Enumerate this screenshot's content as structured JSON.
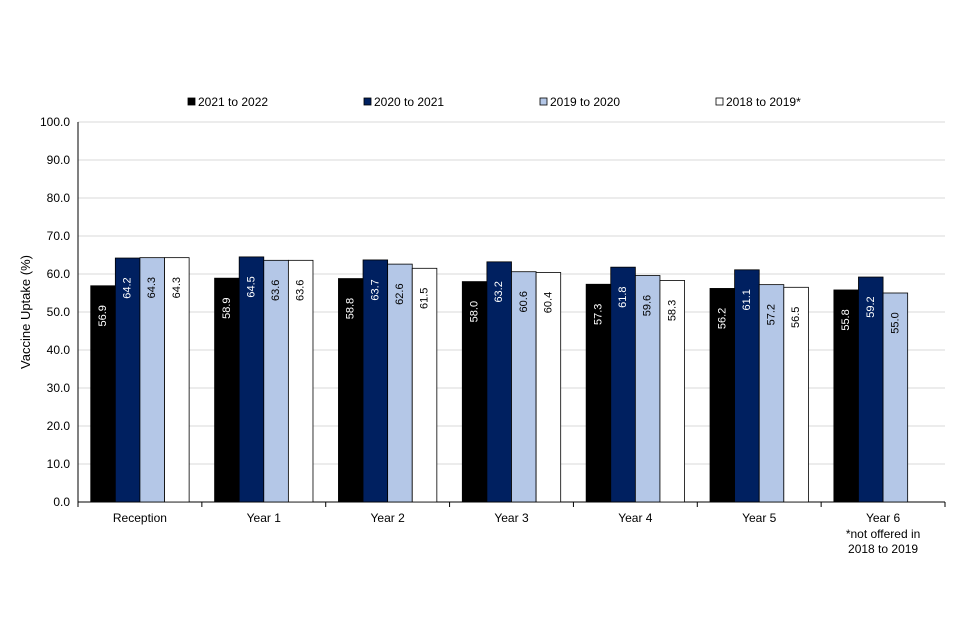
{
  "chart_data": {
    "type": "bar",
    "title": "",
    "xlabel": "",
    "ylabel": "Vaccine Uptake (%)",
    "ylim": [
      0,
      100
    ],
    "yticks": [
      "0.0",
      "10.0",
      "20.0",
      "30.0",
      "40.0",
      "50.0",
      "60.0",
      "70.0",
      "80.0",
      "90.0",
      "100.0"
    ],
    "grid": true,
    "legend_position": "top",
    "categories": [
      "Reception",
      "Year 1",
      "Year 2",
      "Year 3",
      "Year 4",
      "Year 5",
      "Year 6"
    ],
    "category_notes": [
      "",
      "",
      "",
      "",
      "",
      "",
      "*not offered in 2018 to 2019"
    ],
    "series": [
      {
        "name": "2021 to 2022",
        "color": "#000000",
        "label_color": "#ffffff",
        "values": [
          56.9,
          58.9,
          58.8,
          58.0,
          57.3,
          56.2,
          55.8
        ]
      },
      {
        "name": "2020 to 2021",
        "color": "#002060",
        "label_color": "#ffffff",
        "values": [
          64.2,
          64.5,
          63.7,
          63.2,
          61.8,
          61.1,
          59.2
        ]
      },
      {
        "name": "2019 to 2020",
        "color": "#b4c7e7",
        "label_color": "#000000",
        "values": [
          64.3,
          63.6,
          62.6,
          60.6,
          59.6,
          57.2,
          55.0
        ]
      },
      {
        "name": "2018 to 2019*",
        "color": "#ffffff",
        "label_color": "#000000",
        "values": [
          64.3,
          63.6,
          61.5,
          60.4,
          58.3,
          56.5,
          null
        ]
      }
    ]
  }
}
